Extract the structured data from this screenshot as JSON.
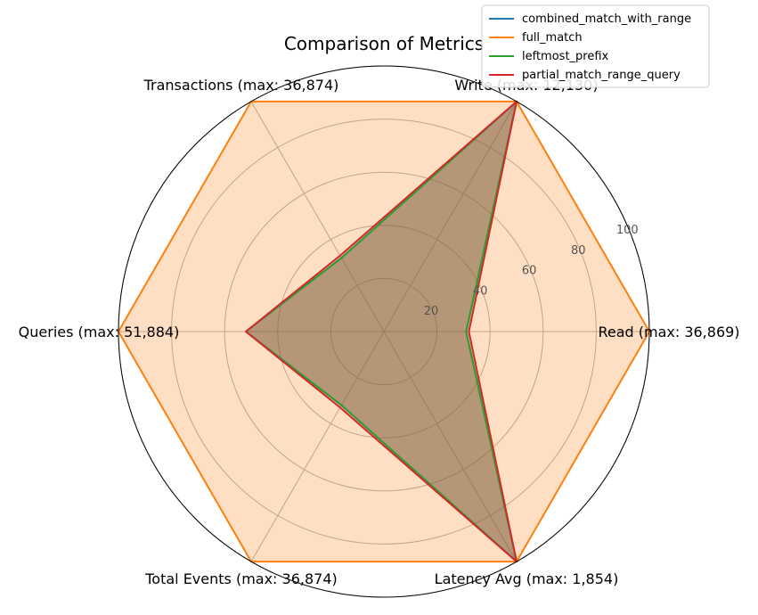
{
  "chart_data": {
    "type": "radar",
    "title": "Comparison of Metrics",
    "axes": [
      "Read (max: 36,869)",
      "Write (max: 12,130)",
      "Transactions (max: 36,874)",
      "Queries (max: 51,884)",
      "Total Events (max: 36,874)",
      "Latency Avg (max: 1,854)"
    ],
    "radial_ticks": [
      20,
      40,
      60,
      80,
      100
    ],
    "rlim": [
      0,
      100
    ],
    "grid": true,
    "legend_position": "top-right",
    "series": [
      {
        "name": "combined_match_with_range",
        "color": "#1f77b4",
        "values": [
          31,
          100,
          32,
          52,
          32,
          100
        ],
        "fill": true
      },
      {
        "name": "full_match",
        "color": "#ff7f0e",
        "values": [
          100,
          100,
          100,
          100,
          100,
          100
        ],
        "fill": true
      },
      {
        "name": "leftmost_prefix",
        "color": "#2ca02c",
        "values": [
          31,
          100,
          32,
          52,
          32,
          100
        ],
        "fill": true
      },
      {
        "name": "partial_match_range_query",
        "color": "#d62728",
        "values": [
          32,
          100,
          33,
          52,
          33,
          100
        ],
        "fill": true
      }
    ]
  }
}
